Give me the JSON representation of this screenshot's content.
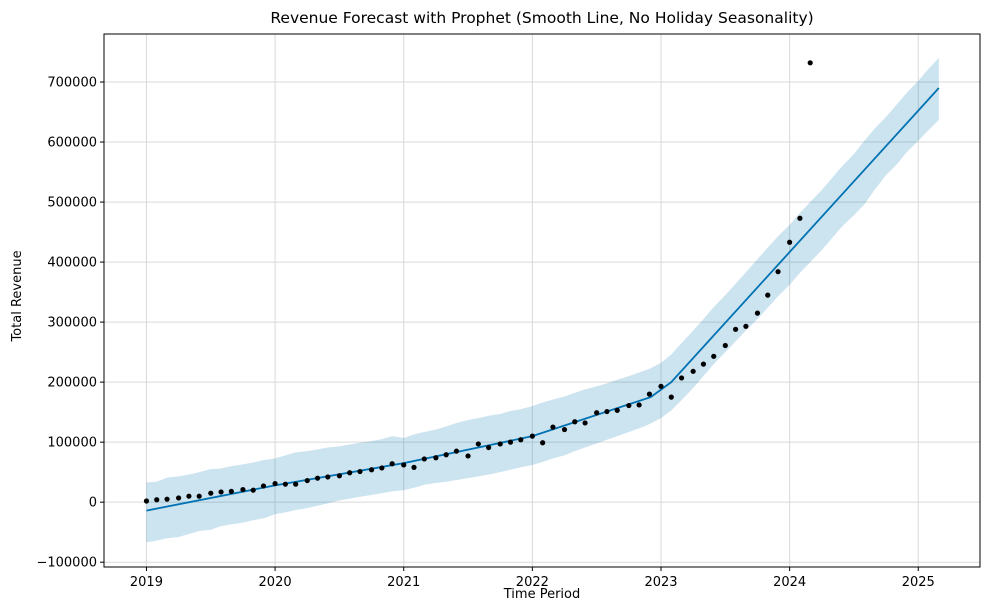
{
  "chart_data": {
    "type": "line",
    "title": "Revenue Forecast with Prophet (Smooth Line, No Holiday Seasonality)",
    "xlabel": "Time Period",
    "ylabel": "Total Revenue",
    "xlim": [
      2018.67,
      2025.48
    ],
    "ylim": [
      -108000,
      780000
    ],
    "x_ticks": [
      {
        "value": 2019,
        "label": "2019"
      },
      {
        "value": 2020,
        "label": "2020"
      },
      {
        "value": 2021,
        "label": "2021"
      },
      {
        "value": 2022,
        "label": "2022"
      },
      {
        "value": 2023,
        "label": "2023"
      },
      {
        "value": 2024,
        "label": "2024"
      },
      {
        "value": 2025,
        "label": "2025"
      }
    ],
    "y_ticks": [
      {
        "value": -100000,
        "label": "−100000"
      },
      {
        "value": 0,
        "label": "0"
      },
      {
        "value": 100000,
        "label": "100000"
      },
      {
        "value": 200000,
        "label": "200000"
      },
      {
        "value": 300000,
        "label": "300000"
      },
      {
        "value": 400000,
        "label": "400000"
      },
      {
        "value": 500000,
        "label": "500000"
      },
      {
        "value": 600000,
        "label": "600000"
      },
      {
        "value": 700000,
        "label": "700000"
      }
    ],
    "grid": true,
    "colors": {
      "forecast_line": "#0072b2",
      "interval_fill": "#0072b2",
      "actual_points": "#000000",
      "grid": "#d9d9d9"
    },
    "series": [
      {
        "type": "scatter",
        "points": [
          [
            2019.0,
            2000
          ],
          [
            2019.08,
            4000
          ],
          [
            2019.16,
            5000
          ],
          [
            2019.25,
            7000
          ],
          [
            2019.33,
            10000
          ],
          [
            2019.41,
            10000
          ],
          [
            2019.5,
            15000
          ],
          [
            2019.58,
            17000
          ],
          [
            2019.66,
            18000
          ],
          [
            2019.75,
            21000
          ],
          [
            2019.83,
            20000
          ],
          [
            2019.91,
            27000
          ],
          [
            2020.0,
            31000
          ],
          [
            2020.08,
            30000
          ],
          [
            2020.16,
            30000
          ],
          [
            2020.25,
            36000
          ],
          [
            2020.33,
            40000
          ],
          [
            2020.41,
            42000
          ],
          [
            2020.5,
            44000
          ],
          [
            2020.58,
            49000
          ],
          [
            2020.66,
            51000
          ],
          [
            2020.75,
            54000
          ],
          [
            2020.83,
            57000
          ],
          [
            2020.91,
            64000
          ],
          [
            2021.0,
            62000
          ],
          [
            2021.08,
            58000
          ],
          [
            2021.16,
            72000
          ],
          [
            2021.25,
            74000
          ],
          [
            2021.33,
            79000
          ],
          [
            2021.41,
            85000
          ],
          [
            2021.5,
            77000
          ],
          [
            2021.58,
            97000
          ],
          [
            2021.66,
            91000
          ],
          [
            2021.75,
            97000
          ],
          [
            2021.83,
            100000
          ],
          [
            2021.91,
            104000
          ],
          [
            2022.0,
            110000
          ],
          [
            2022.08,
            99000
          ],
          [
            2022.16,
            125000
          ],
          [
            2022.25,
            121000
          ],
          [
            2022.33,
            134000
          ],
          [
            2022.41,
            132000
          ],
          [
            2022.5,
            149000
          ],
          [
            2022.58,
            151000
          ],
          [
            2022.66,
            153000
          ],
          [
            2022.75,
            161000
          ],
          [
            2022.83,
            162000
          ],
          [
            2022.91,
            180000
          ],
          [
            2023.0,
            193000
          ],
          [
            2023.08,
            175000
          ],
          [
            2023.16,
            207000
          ],
          [
            2023.25,
            218000
          ],
          [
            2023.33,
            230000
          ],
          [
            2023.41,
            243000
          ],
          [
            2023.5,
            261000
          ],
          [
            2023.58,
            288000
          ],
          [
            2023.66,
            293000
          ],
          [
            2023.75,
            315000
          ],
          [
            2023.83,
            345000
          ],
          [
            2023.91,
            384000
          ],
          [
            2024.0,
            433000
          ],
          [
            2024.08,
            473000
          ],
          [
            2024.16,
            732000
          ]
        ]
      },
      {
        "type": "line",
        "points": [
          [
            2019.0,
            -14000
          ],
          [
            2020.0,
            28000
          ],
          [
            2021.0,
            65000
          ],
          [
            2022.0,
            110000
          ],
          [
            2022.92,
            175000
          ],
          [
            2023.08,
            200000
          ],
          [
            2025.16,
            690000
          ]
        ]
      },
      {
        "type": "area",
        "upper": [
          [
            2019.0,
            33000
          ],
          [
            2019.08,
            34000
          ],
          [
            2019.16,
            41000
          ],
          [
            2019.25,
            43000
          ],
          [
            2019.33,
            46000
          ],
          [
            2019.41,
            50000
          ],
          [
            2019.5,
            55000
          ],
          [
            2019.58,
            56000
          ],
          [
            2019.66,
            60000
          ],
          [
            2019.75,
            63000
          ],
          [
            2019.83,
            66000
          ],
          [
            2019.91,
            70000
          ],
          [
            2020.0,
            73000
          ],
          [
            2020.08,
            78000
          ],
          [
            2020.16,
            83000
          ],
          [
            2020.25,
            85000
          ],
          [
            2020.33,
            88000
          ],
          [
            2020.41,
            91000
          ],
          [
            2020.5,
            93000
          ],
          [
            2020.58,
            96000
          ],
          [
            2020.66,
            99000
          ],
          [
            2020.75,
            102000
          ],
          [
            2020.83,
            105000
          ],
          [
            2020.91,
            110000
          ],
          [
            2021.0,
            107000
          ],
          [
            2021.08,
            113000
          ],
          [
            2021.16,
            117000
          ],
          [
            2021.25,
            121000
          ],
          [
            2021.33,
            126000
          ],
          [
            2021.41,
            132000
          ],
          [
            2021.5,
            137000
          ],
          [
            2021.58,
            140000
          ],
          [
            2021.66,
            144000
          ],
          [
            2021.75,
            147000
          ],
          [
            2021.83,
            152000
          ],
          [
            2021.91,
            155000
          ],
          [
            2022.0,
            160000
          ],
          [
            2022.08,
            166000
          ],
          [
            2022.16,
            171000
          ],
          [
            2022.25,
            176000
          ],
          [
            2022.33,
            182000
          ],
          [
            2022.41,
            188000
          ],
          [
            2022.5,
            193000
          ],
          [
            2022.58,
            198000
          ],
          [
            2022.66,
            204000
          ],
          [
            2022.75,
            210000
          ],
          [
            2022.83,
            216000
          ],
          [
            2022.91,
            222000
          ],
          [
            2023.0,
            232000
          ],
          [
            2023.08,
            246000
          ],
          [
            2023.16,
            265000
          ],
          [
            2023.25,
            286000
          ],
          [
            2023.33,
            305000
          ],
          [
            2023.41,
            325000
          ],
          [
            2023.5,
            345000
          ],
          [
            2023.58,
            364000
          ],
          [
            2023.66,
            383000
          ],
          [
            2023.75,
            405000
          ],
          [
            2023.83,
            424000
          ],
          [
            2023.91,
            443000
          ],
          [
            2024.0,
            462000
          ],
          [
            2024.08,
            482000
          ],
          [
            2024.16,
            500000
          ],
          [
            2024.25,
            520000
          ],
          [
            2024.33,
            540000
          ],
          [
            2024.41,
            560000
          ],
          [
            2024.5,
            580000
          ],
          [
            2024.58,
            602000
          ],
          [
            2024.66,
            622000
          ],
          [
            2024.75,
            642000
          ],
          [
            2024.83,
            662000
          ],
          [
            2024.91,
            682000
          ],
          [
            2025.0,
            702000
          ],
          [
            2025.08,
            722000
          ],
          [
            2025.16,
            740000
          ]
        ],
        "lower": [
          [
            2019.0,
            -67000
          ],
          [
            2019.08,
            -64000
          ],
          [
            2019.16,
            -60000
          ],
          [
            2019.25,
            -58000
          ],
          [
            2019.33,
            -53000
          ],
          [
            2019.41,
            -48000
          ],
          [
            2019.5,
            -46000
          ],
          [
            2019.58,
            -40000
          ],
          [
            2019.66,
            -37000
          ],
          [
            2019.75,
            -34000
          ],
          [
            2019.83,
            -30000
          ],
          [
            2019.91,
            -27000
          ],
          [
            2020.0,
            -20000
          ],
          [
            2020.08,
            -17000
          ],
          [
            2020.16,
            -13000
          ],
          [
            2020.25,
            -10000
          ],
          [
            2020.33,
            -6000
          ],
          [
            2020.41,
            -2000
          ],
          [
            2020.5,
            3000
          ],
          [
            2020.58,
            6000
          ],
          [
            2020.66,
            9000
          ],
          [
            2020.75,
            12000
          ],
          [
            2020.83,
            15000
          ],
          [
            2020.91,
            18000
          ],
          [
            2021.0,
            20000
          ],
          [
            2021.08,
            24000
          ],
          [
            2021.16,
            29000
          ],
          [
            2021.25,
            32000
          ],
          [
            2021.33,
            34000
          ],
          [
            2021.41,
            37000
          ],
          [
            2021.5,
            40000
          ],
          [
            2021.58,
            43000
          ],
          [
            2021.66,
            46000
          ],
          [
            2021.75,
            50000
          ],
          [
            2021.83,
            54000
          ],
          [
            2021.91,
            58000
          ],
          [
            2022.0,
            62000
          ],
          [
            2022.08,
            67000
          ],
          [
            2022.16,
            73000
          ],
          [
            2022.25,
            78000
          ],
          [
            2022.33,
            85000
          ],
          [
            2022.41,
            91000
          ],
          [
            2022.5,
            98000
          ],
          [
            2022.58,
            104000
          ],
          [
            2022.66,
            110000
          ],
          [
            2022.75,
            117000
          ],
          [
            2022.83,
            123000
          ],
          [
            2022.91,
            130000
          ],
          [
            2023.0,
            140000
          ],
          [
            2023.08,
            153000
          ],
          [
            2023.16,
            170000
          ],
          [
            2023.25,
            190000
          ],
          [
            2023.33,
            210000
          ],
          [
            2023.41,
            230000
          ],
          [
            2023.5,
            250000
          ],
          [
            2023.58,
            268000
          ],
          [
            2023.66,
            286000
          ],
          [
            2023.75,
            305000
          ],
          [
            2023.83,
            324000
          ],
          [
            2023.91,
            343000
          ],
          [
            2024.0,
            362000
          ],
          [
            2024.08,
            382000
          ],
          [
            2024.16,
            400000
          ],
          [
            2024.25,
            420000
          ],
          [
            2024.33,
            440000
          ],
          [
            2024.41,
            460000
          ],
          [
            2024.5,
            478000
          ],
          [
            2024.58,
            496000
          ],
          [
            2024.66,
            520000
          ],
          [
            2024.75,
            545000
          ],
          [
            2024.83,
            562000
          ],
          [
            2024.91,
            583000
          ],
          [
            2025.0,
            602000
          ],
          [
            2025.08,
            620000
          ],
          [
            2025.16,
            637000
          ]
        ]
      }
    ]
  }
}
